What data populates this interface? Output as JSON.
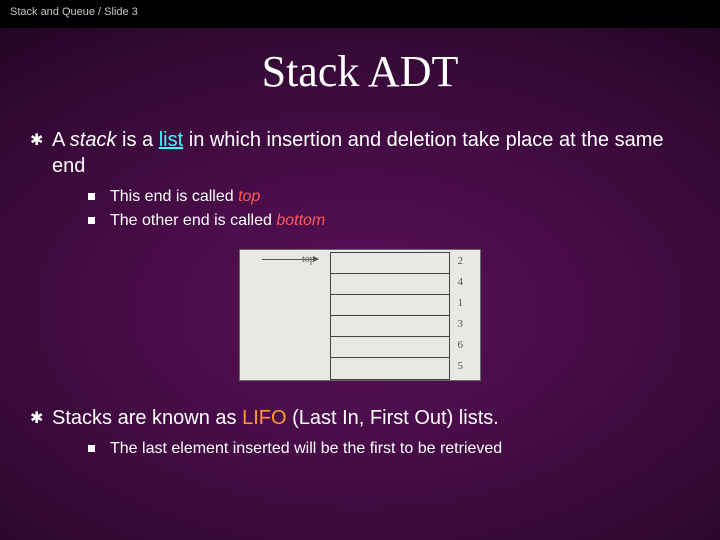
{
  "header": {
    "breadcrumb": "Stack and Queue / Slide 3"
  },
  "title": "Stack ADT",
  "bullets": {
    "b1": {
      "prefix": "A ",
      "stack": "stack",
      "mid1": " is a ",
      "list": "list",
      "rest": " in which insertion and deletion take place at the same end"
    },
    "b1_sub1": {
      "prefix": "This end is called ",
      "kw": "top"
    },
    "b1_sub2": {
      "prefix": "The other end is called ",
      "kw": "bottom"
    },
    "b2": {
      "prefix": "Stacks are known as ",
      "lifo": "LIFO",
      "rest": " (Last In, First Out) lists."
    },
    "b2_sub1": {
      "text": "The last element inserted will be the first to be retrieved"
    }
  },
  "diagram": {
    "top_label": "top",
    "cells": [
      "2",
      "4",
      "1",
      "3",
      "6",
      "5"
    ],
    "colors": {
      "bg": "#e8e8e4",
      "border": "#6a6a6a",
      "line": "#444444",
      "text": "#555555"
    }
  },
  "style": {
    "title_fontsize": 44,
    "body_fontsize": 20,
    "sub_fontsize": 16,
    "colors": {
      "bg_gradient_center": "#5a105a",
      "bg_gradient_edge": "#0a020a",
      "text": "#ffffff",
      "orange": "#ff9933",
      "red": "#ff5a5a",
      "cyan": "#33ffff"
    }
  }
}
